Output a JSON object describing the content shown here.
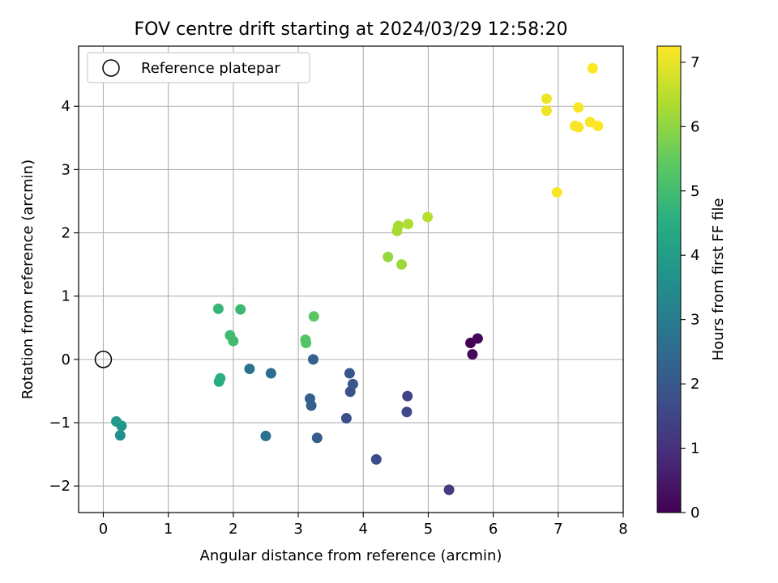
{
  "chart_data": {
    "type": "scatter",
    "title": "FOV centre drift starting at 2024/03/29 12:58:20",
    "xlabel": "Angular distance from reference (arcmin)",
    "ylabel": "Rotation from reference (arcmin)",
    "xlim": [
      -0.38,
      8.0
    ],
    "ylim": [
      -2.42,
      4.95
    ],
    "xticks": [
      0,
      1,
      2,
      3,
      4,
      5,
      6,
      7,
      8
    ],
    "yticks": [
      -2,
      -1,
      0,
      1,
      2,
      3,
      4
    ],
    "grid": true,
    "colormap": "viridis",
    "legend": {
      "position": "top-left",
      "entries": [
        {
          "label": "Reference platepar",
          "marker": "open-circle"
        }
      ]
    },
    "reference_point": {
      "x": 0,
      "y": 0
    },
    "colorbar": {
      "label": "Hours from first FF file",
      "range": [
        0,
        7.25
      ],
      "ticks": [
        0,
        1,
        2,
        3,
        4,
        5,
        6,
        7
      ]
    },
    "points": [
      {
        "x": 5.65,
        "y": 0.26,
        "c": 0.0
      },
      {
        "x": 5.76,
        "y": 0.33,
        "c": 0.1
      },
      {
        "x": 5.68,
        "y": 0.08,
        "c": 0.2
      },
      {
        "x": 5.32,
        "y": -2.06,
        "c": 1.3
      },
      {
        "x": 4.68,
        "y": -0.58,
        "c": 1.5
      },
      {
        "x": 4.67,
        "y": -0.83,
        "c": 1.6
      },
      {
        "x": 4.2,
        "y": -1.58,
        "c": 1.7
      },
      {
        "x": 3.74,
        "y": -0.93,
        "c": 1.8
      },
      {
        "x": 3.8,
        "y": -0.51,
        "c": 1.9
      },
      {
        "x": 3.84,
        "y": -0.39,
        "c": 2.0
      },
      {
        "x": 3.79,
        "y": -0.22,
        "c": 2.0
      },
      {
        "x": 3.29,
        "y": -1.24,
        "c": 2.1
      },
      {
        "x": 3.2,
        "y": -0.73,
        "c": 2.2
      },
      {
        "x": 3.18,
        "y": -0.62,
        "c": 2.2
      },
      {
        "x": 3.23,
        "y": 0.0,
        "c": 2.3
      },
      {
        "x": 2.58,
        "y": -0.22,
        "c": 2.6
      },
      {
        "x": 2.5,
        "y": -1.21,
        "c": 2.7
      },
      {
        "x": 2.25,
        "y": -0.15,
        "c": 2.8
      },
      {
        "x": 0.26,
        "y": -1.2,
        "c": 3.6
      },
      {
        "x": 0.28,
        "y": -1.05,
        "c": 3.8
      },
      {
        "x": 0.2,
        "y": -0.98,
        "c": 3.9
      },
      {
        "x": 1.78,
        "y": -0.35,
        "c": 4.5
      },
      {
        "x": 1.8,
        "y": -0.3,
        "c": 4.6
      },
      {
        "x": 1.77,
        "y": 0.8,
        "c": 4.8
      },
      {
        "x": 2.11,
        "y": 0.79,
        "c": 4.9
      },
      {
        "x": 1.95,
        "y": 0.38,
        "c": 5.0
      },
      {
        "x": 2.0,
        "y": 0.29,
        "c": 5.0
      },
      {
        "x": 3.11,
        "y": 0.31,
        "c": 5.3
      },
      {
        "x": 3.12,
        "y": 0.26,
        "c": 5.3
      },
      {
        "x": 3.24,
        "y": 0.68,
        "c": 5.4
      },
      {
        "x": 4.38,
        "y": 1.62,
        "c": 6.1
      },
      {
        "x": 4.59,
        "y": 1.5,
        "c": 6.2
      },
      {
        "x": 4.52,
        "y": 2.03,
        "c": 6.3
      },
      {
        "x": 4.54,
        "y": 2.11,
        "c": 6.3
      },
      {
        "x": 4.69,
        "y": 2.14,
        "c": 6.4
      },
      {
        "x": 4.99,
        "y": 2.25,
        "c": 6.5
      },
      {
        "x": 6.82,
        "y": 4.12,
        "c": 7.1
      },
      {
        "x": 6.82,
        "y": 3.93,
        "c": 7.1
      },
      {
        "x": 6.98,
        "y": 2.64,
        "c": 7.2
      },
      {
        "x": 7.26,
        "y": 3.69,
        "c": 7.2
      },
      {
        "x": 7.31,
        "y": 3.67,
        "c": 7.2
      },
      {
        "x": 7.31,
        "y": 3.98,
        "c": 7.2
      },
      {
        "x": 7.49,
        "y": 3.75,
        "c": 7.2
      },
      {
        "x": 7.61,
        "y": 3.69,
        "c": 7.25
      },
      {
        "x": 7.53,
        "y": 4.6,
        "c": 7.25
      }
    ]
  }
}
